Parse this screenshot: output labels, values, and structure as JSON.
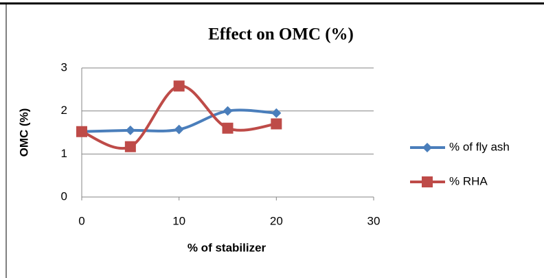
{
  "chart_data": {
    "type": "line",
    "title": "Effect on OMC (%)",
    "x_label": "% of stabilizer",
    "y_label": "OMC (%)",
    "x": [
      0,
      5,
      10,
      15,
      20
    ],
    "series": [
      {
        "name": "% of fly ash",
        "color": "#4a7ebb",
        "marker": "diamond",
        "values": [
          1.52,
          1.55,
          1.57,
          2.0,
          1.95
        ]
      },
      {
        "name": "% RHA",
        "color": "#be4b48",
        "marker": "square",
        "values": [
          1.52,
          1.17,
          2.58,
          1.6,
          1.7
        ]
      }
    ],
    "xlim": [
      0,
      30
    ],
    "xticks": [
      0,
      10,
      20,
      30
    ],
    "ylim": [
      0,
      3
    ],
    "yticks": [
      0,
      1,
      2,
      3
    ],
    "grid": true,
    "smooth": true,
    "legend": "right"
  }
}
